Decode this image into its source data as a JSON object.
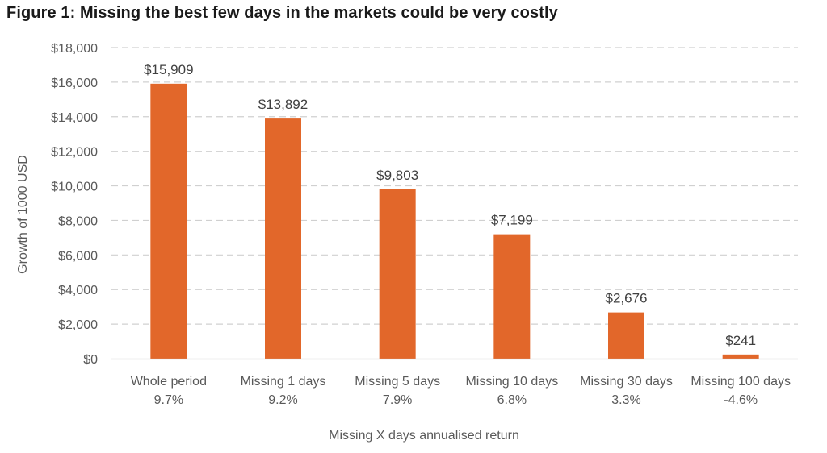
{
  "figure_title": "Figure 1: Missing the best few days in the markets could be very costly",
  "colors": {
    "bar": "#E2672A",
    "grid": "#D0D0D0",
    "axis": "#BFBFBF",
    "text": "#595959"
  },
  "chart_data": {
    "type": "bar",
    "title": "",
    "xlabel": "Missing X days annualised return",
    "ylabel": "Growth of 1000 USD",
    "categories": [
      [
        "Whole period",
        "9.7%"
      ],
      [
        "Missing 1 days",
        "9.2%"
      ],
      [
        "Missing 5 days",
        "7.9%"
      ],
      [
        "Missing 10 days",
        "6.8%"
      ],
      [
        "Missing 30 days",
        "3.3%"
      ],
      [
        "Missing 100 days",
        "-4.6%"
      ]
    ],
    "values": [
      15909,
      13892,
      9803,
      7199,
      2676,
      241
    ],
    "data_labels": [
      "$15,909",
      "$13,892",
      "$9,803",
      "$7,199",
      "$2,676",
      "$241"
    ],
    "ylim": [
      0,
      18000
    ],
    "yticks": [
      0,
      2000,
      4000,
      6000,
      8000,
      10000,
      12000,
      14000,
      16000,
      18000
    ],
    "ytick_labels": [
      "$0",
      "$2,000",
      "$4,000",
      "$6,000",
      "$8,000",
      "$10,000",
      "$12,000",
      "$14,000",
      "$16,000",
      "$18,000"
    ],
    "grid": true,
    "legend": "none"
  }
}
